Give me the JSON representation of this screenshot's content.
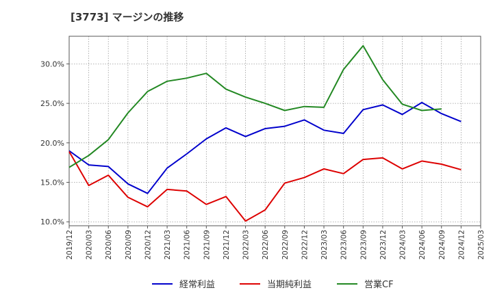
{
  "chart_data": {
    "type": "line",
    "title": "[3773]  マージンの推移",
    "xlabel": "",
    "ylabel": "",
    "x": [
      "2019/12",
      "2020/03",
      "2020/06",
      "2020/09",
      "2020/12",
      "2021/03",
      "2021/06",
      "2021/09",
      "2021/12",
      "2022/03",
      "2022/06",
      "2022/09",
      "2022/12",
      "2023/03",
      "2023/06",
      "2023/09",
      "2023/12",
      "2024/03",
      "2024/06",
      "2024/09",
      "2024/12",
      "2025/03"
    ],
    "ylim": [
      9.5,
      33.5
    ],
    "yticks": [
      10,
      15,
      20,
      25,
      30
    ],
    "ytick_labels": [
      "10.0%",
      "15.0%",
      "20.0%",
      "25.0%",
      "30.0%"
    ],
    "grid": true,
    "legend_position": "bottom",
    "series": [
      {
        "name": "経常利益",
        "color": "#0000cc",
        "values": [
          19.0,
          17.2,
          17.0,
          14.8,
          13.6,
          16.8,
          18.6,
          20.5,
          21.9,
          20.8,
          21.8,
          22.1,
          22.9,
          21.6,
          21.2,
          24.2,
          24.8,
          23.6,
          25.1,
          23.7,
          22.7,
          null
        ]
      },
      {
        "name": "当期純利益",
        "color": "#dd0000",
        "values": [
          18.9,
          14.6,
          15.9,
          13.1,
          11.9,
          14.1,
          13.9,
          12.2,
          13.2,
          10.1,
          11.5,
          14.9,
          15.6,
          16.7,
          16.1,
          17.9,
          18.1,
          16.7,
          17.7,
          17.3,
          16.6,
          null
        ]
      },
      {
        "name": "営業CF",
        "color": "#228822",
        "values": [
          16.9,
          18.4,
          20.4,
          23.8,
          26.5,
          27.8,
          28.2,
          28.8,
          26.8,
          25.8,
          25.0,
          24.1,
          24.6,
          24.5,
          29.3,
          32.3,
          28.0,
          24.9,
          24.1,
          24.3,
          null,
          null
        ]
      }
    ]
  }
}
